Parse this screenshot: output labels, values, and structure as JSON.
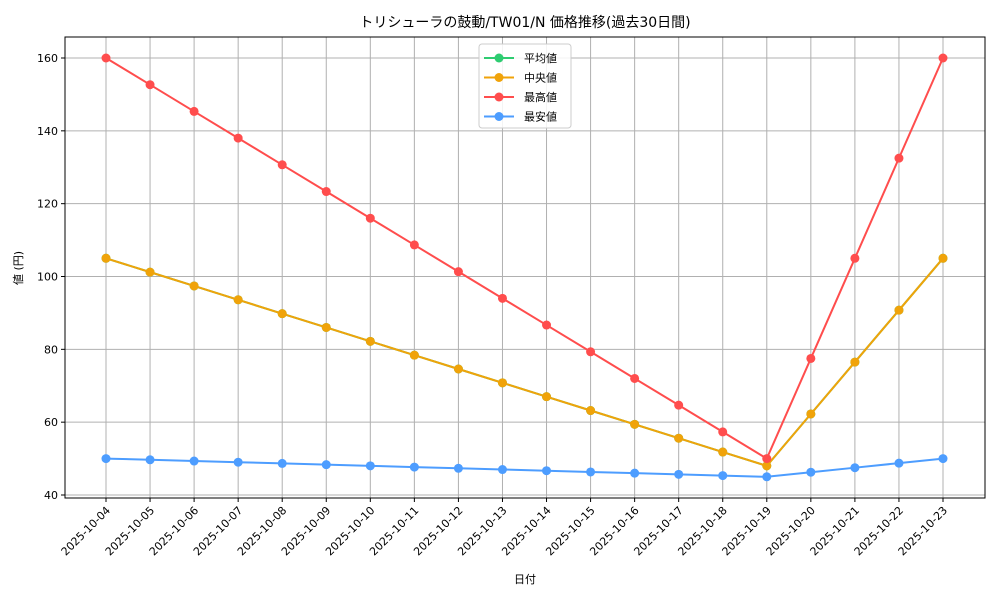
{
  "chart_data": {
    "type": "line",
    "title": "トリシューラの鼓動/TW01/N 価格推移(過去30日間)",
    "xlabel": "日付",
    "ylabel": "値 (円)",
    "ylim": [
      40,
      166
    ],
    "yticks": [
      40,
      60,
      80,
      100,
      120,
      140,
      160
    ],
    "grid": true,
    "legend_position": "upper center",
    "categories": [
      "2025-10-04",
      "2025-10-05",
      "2025-10-06",
      "2025-10-07",
      "2025-10-08",
      "2025-10-09",
      "2025-10-10",
      "2025-10-11",
      "2025-10-12",
      "2025-10-13",
      "2025-10-14",
      "2025-10-15",
      "2025-10-16",
      "2025-10-17",
      "2025-10-18",
      "2025-10-19",
      "2025-10-20",
      "2025-10-21",
      "2025-10-22",
      "2025-10-23"
    ],
    "series": [
      {
        "name": "平均値",
        "color": "#2ecc71",
        "values": [
          105,
          101.2,
          97.4,
          93.6,
          89.8,
          86,
          82.2,
          78.4,
          74.6,
          70.8,
          67,
          63.2,
          59.4,
          55.6,
          51.8,
          48,
          62.25,
          76.5,
          90.75,
          105
        ]
      },
      {
        "name": "中央値",
        "color": "#f0a30a",
        "values": [
          105,
          101.2,
          97.4,
          93.6,
          89.8,
          86,
          82.2,
          78.4,
          74.6,
          70.8,
          67,
          63.2,
          59.4,
          55.6,
          51.8,
          48,
          62.25,
          76.5,
          90.75,
          105
        ]
      },
      {
        "name": "最高値",
        "color": "#ff4d4d",
        "values": [
          160,
          152.67,
          145.33,
          138,
          130.67,
          123.33,
          116,
          108.67,
          101.33,
          94,
          86.67,
          79.33,
          72,
          64.67,
          57.33,
          50,
          77.5,
          105,
          132.5,
          160
        ]
      },
      {
        "name": "最安値",
        "color": "#4d9dff",
        "values": [
          50,
          49.67,
          49.33,
          49,
          48.67,
          48.33,
          48,
          47.67,
          47.33,
          47,
          46.67,
          46.33,
          46,
          45.67,
          45.33,
          45,
          46.25,
          47.5,
          48.75,
          50
        ]
      }
    ]
  }
}
